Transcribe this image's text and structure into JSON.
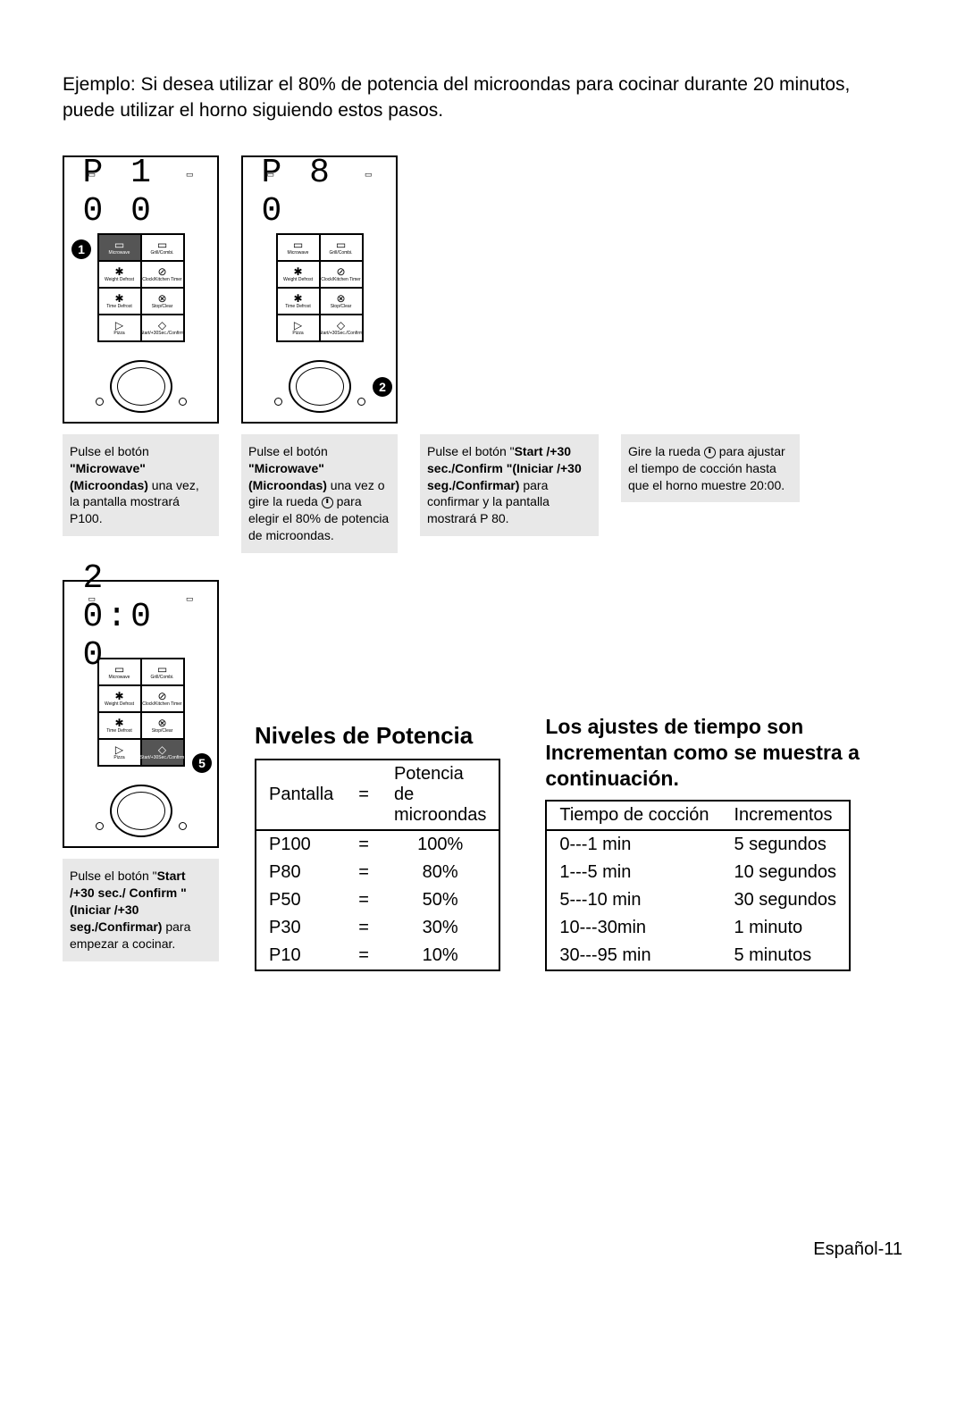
{
  "intro": "Ejemplo: Si desea utilizar el 80% de potencia del microondas para cocinar durante 20 minutos, puede utilizar el horno siguiendo estos pasos.",
  "panels": {
    "p1": {
      "display": "P 1 0 0",
      "marker": "1",
      "marker_pos": "btn1"
    },
    "p2": {
      "display": "P   8 0",
      "marker": "2",
      "marker_pos": "dial-right"
    },
    "p3": {
      "display": "2 0:0 0",
      "marker": "5",
      "marker_pos": "btn8"
    }
  },
  "buttons": [
    {
      "icon": "▭",
      "label": "Microwave"
    },
    {
      "icon": "▭",
      "label": "Grill/Combi."
    },
    {
      "icon": "✱",
      "label": "Weight Defrost"
    },
    {
      "icon": "⊘",
      "label": "Clock/Kitchen Timer"
    },
    {
      "icon": "✱",
      "label": "Time Defrost"
    },
    {
      "icon": "⊗",
      "label": "Stop/Clear"
    },
    {
      "icon": "▷",
      "label": "Pizza"
    },
    {
      "icon": "◇",
      "label": "Start/+30Sec./Confirm"
    }
  ],
  "captions": {
    "c1": {
      "pre": "Pulse el botón ",
      "bold": "\"Microwave\"(Microondas)",
      "post": " una vez, la pantalla mostrará P100."
    },
    "c2": {
      "pre": "Pulse el botón ",
      "bold": "\"Microwave\"(Microondas)",
      "post": " una vez o gire la rueda ",
      "post2": " para elegir el 80% de potencia de microondas."
    },
    "c3": {
      "pre": "Pulse el botón \"",
      "bold": "Start /+30 sec./Confirm \"(Iniciar /+30 seg./Confirmar)",
      "post": " para confirmar y la pantalla mostrará P 80."
    },
    "c4": {
      "pre": "Gire la rueda ",
      "post": " para ajustar el tiempo de cocción hasta que el horno muestre 20:00."
    },
    "c5": {
      "pre": "Pulse el botón \"",
      "bold": "Start /+30 sec./ Confirm \"(Iniciar /+30 seg./Confirmar)",
      "post": " para empezar a cocinar."
    }
  },
  "power_title": "Niveles de Potencia",
  "power_table": {
    "head": [
      "Pantalla",
      "=",
      "Potencia de microondas"
    ],
    "rows": [
      [
        "P100",
        "=",
        "100%"
      ],
      [
        "P80",
        "=",
        "80%"
      ],
      [
        "P50",
        "=",
        "50%"
      ],
      [
        "P30",
        "=",
        "30%"
      ],
      [
        "P10",
        "=",
        "10%"
      ]
    ]
  },
  "time_title": "Los ajustes de tiempo son Incrementan como se muestra a continuación.",
  "time_table": {
    "head": [
      "Tiempo de cocción",
      "Incrementos"
    ],
    "rows": [
      [
        "0---1 min",
        "5 segundos"
      ],
      [
        "1---5 min",
        "10 segundos"
      ],
      [
        "5---10 min",
        "30 segundos"
      ],
      [
        "10---30min",
        "1 minuto"
      ],
      [
        "30---95 min",
        "5 minutos"
      ]
    ]
  },
  "footer": "Español-11"
}
